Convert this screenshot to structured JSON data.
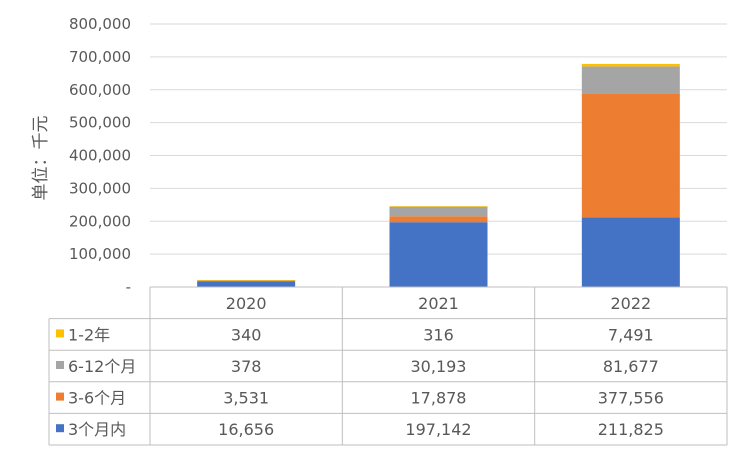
{
  "chart_data": {
    "type": "bar",
    "stacked": true,
    "categories": [
      "2020",
      "2021",
      "2022"
    ],
    "series": [
      {
        "name": "3个月内",
        "values": [
          16656,
          197142,
          211825
        ],
        "color": "#4472C4"
      },
      {
        "name": "3-6个月",
        "values": [
          3531,
          17878,
          377556
        ],
        "color": "#ED7D31"
      },
      {
        "name": "6-12个月",
        "values": [
          378,
          30193,
          81677
        ],
        "color": "#A5A5A5"
      },
      {
        "name": "1-2年",
        "values": [
          340,
          316,
          7491
        ],
        "color": "#FFC000"
      }
    ],
    "table_rows_order": [
      "1-2年",
      "6-12个月",
      "3-6个月",
      "3个月内"
    ],
    "table_values": {
      "1-2年": [
        "340",
        "316",
        "7,491"
      ],
      "6-12个月": [
        "378",
        "30,193",
        "81,677"
      ],
      "3-6个月": [
        "3,531",
        "17,878",
        "377,556"
      ],
      "3个月内": [
        "16,656",
        "197,142",
        "211,825"
      ]
    },
    "ylabel": "单位：千元",
    "ylim": [
      0,
      800000
    ],
    "yticks": [
      "-",
      "100,000",
      "200,000",
      "300,000",
      "400,000",
      "500,000",
      "600,000",
      "700,000",
      "800,000"
    ],
    "grid": true,
    "legend": "data table"
  }
}
